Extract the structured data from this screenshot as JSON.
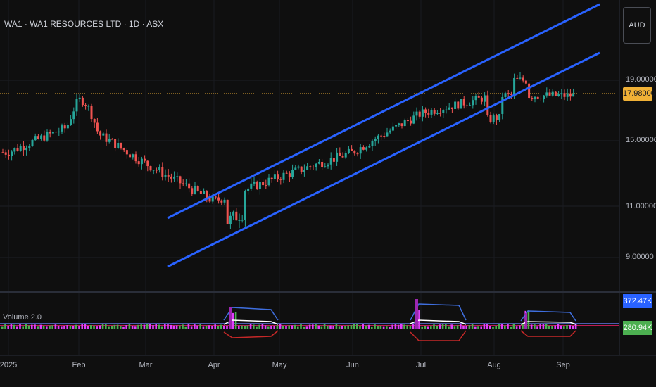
{
  "header": {
    "title": "WA1 · WA1 RESOURCES LTD · 1D · ASX",
    "currency": "AUD"
  },
  "price_axis": {
    "labels": [
      "19.00000",
      "15.00000",
      "11.00000",
      "9.00000"
    ],
    "last_price": "17.98000"
  },
  "volume": {
    "title": "Volume 2.0",
    "tag_upper": "372.47K",
    "tag_lower": "280.94K"
  },
  "time_axis": {
    "labels": [
      "2025",
      "Feb",
      "Mar",
      "Apr",
      "May",
      "Jun",
      "Jul",
      "Aug",
      "Sep"
    ]
  },
  "colors": {
    "bg": "#0f0f0f",
    "up": "#26a69a",
    "down": "#ef5350",
    "channel": "#2962ff",
    "last_price": "#f0b136"
  },
  "chart_data": {
    "type": "candlestick",
    "title": "WA1 · WA1 RESOURCES LTD · 1D · ASX",
    "series": [
      {
        "name": "close_approx",
        "x": [
          "Jan",
          "Feb",
          "Mar",
          "Apr",
          "May",
          "Jun",
          "Jul",
          "Aug",
          "Sep"
        ],
        "values": [
          14.3,
          16.2,
          13.6,
          11.3,
          12.8,
          14.3,
          16.8,
          18.0,
          17.98
        ]
      }
    ],
    "ylim": [
      8,
      21
    ],
    "y_ticks": [
      9,
      11,
      15,
      19
    ],
    "last_price": 17.98,
    "volume_levels": [
      "372.47K",
      "280.94K"
    ],
    "grid": true
  }
}
